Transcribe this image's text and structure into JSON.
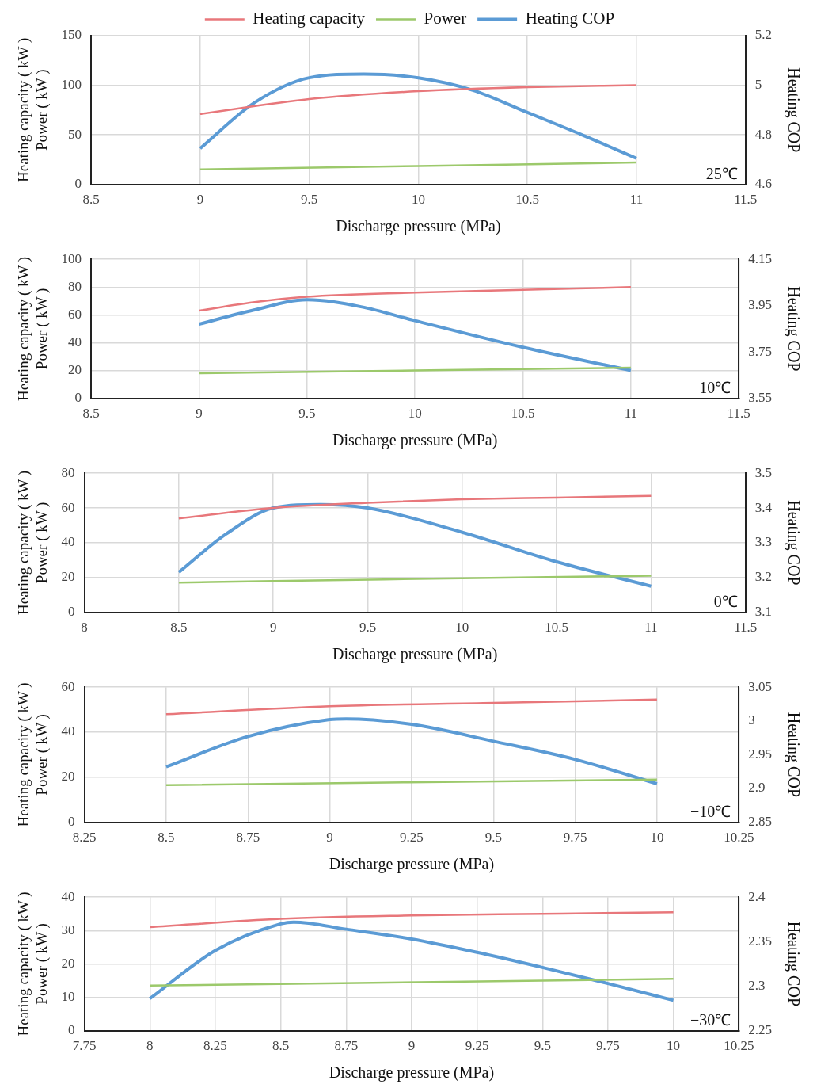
{
  "chart_data": [
    {
      "type": "line",
      "xlabel": "Discharge pressure (MPa)",
      "ylabel": "Heating capacity ( kW )\nPower ( kW )",
      "y2label": "Heating COP",
      "xlim": [
        8.5,
        11.5
      ],
      "xticks": [
        8.5,
        9,
        9.5,
        10,
        10.5,
        11,
        11.5
      ],
      "ylim": [
        0,
        150
      ],
      "yticks": [
        0,
        50,
        100,
        150
      ],
      "y2lim": [
        4.6,
        5.2
      ],
      "y2ticks": [
        4.6,
        4.8,
        5,
        5.2
      ],
      "grid": true,
      "legend": "top",
      "marker": "none",
      "line_style": "solid",
      "annotations": [
        "25℃"
      ],
      "series": [
        {
          "name": "Heating capacity",
          "color": "#e8777b",
          "x": [
            9,
            9.5,
            10,
            10.5,
            11
          ],
          "values": [
            71,
            86,
            94,
            98,
            100
          ]
        },
        {
          "name": "Power",
          "color": "#9cc96b",
          "x": [
            9,
            10,
            11
          ],
          "values": [
            15,
            18.5,
            22
          ]
        },
        {
          "name": "Heating COP",
          "color": "#5b9bd5",
          "axis": "y2",
          "x": [
            9,
            9.25,
            9.5,
            9.75,
            10,
            10.25,
            10.5,
            10.75,
            11
          ],
          "values": [
            4.745,
            4.93,
            5.03,
            5.045,
            5.03,
            4.98,
            4.89,
            4.8,
            4.705
          ]
        }
      ]
    },
    {
      "type": "line",
      "xlabel": "Discharge pressure (MPa)",
      "ylabel": "Heating capacity ( kW )\nPower ( kW )",
      "y2label": "Heating COP",
      "xlim": [
        8.5,
        11.5
      ],
      "xticks": [
        8.5,
        9,
        9.5,
        10,
        10.5,
        11,
        11.5
      ],
      "ylim": [
        0,
        100
      ],
      "yticks": [
        0,
        20,
        40,
        60,
        80,
        100
      ],
      "y2lim": [
        3.55,
        4.15
      ],
      "y2ticks": [
        3.55,
        3.75,
        3.95,
        4.15
      ],
      "grid": true,
      "marker": "none",
      "line_style": "solid",
      "annotations": [
        "10℃"
      ],
      "series": [
        {
          "color": "#e8777b",
          "x": [
            9,
            9.25,
            9.5,
            10,
            10.5,
            11
          ],
          "values": [
            63,
            69,
            73,
            76,
            78,
            80
          ]
        },
        {
          "color": "#9cc96b",
          "x": [
            9,
            10,
            11
          ],
          "values": [
            18,
            20,
            22
          ]
        },
        {
          "color": "#5b9bd5",
          "axis": "y2",
          "x": [
            9,
            9.25,
            9.5,
            9.75,
            10,
            10.5,
            11
          ],
          "values": [
            3.87,
            3.93,
            3.975,
            3.945,
            3.885,
            3.77,
            3.67
          ]
        }
      ]
    },
    {
      "type": "line",
      "xlabel": "Discharge pressure (MPa)",
      "ylabel": "Heating capacity ( kW )\nPower ( kW )",
      "y2label": "Heating COP",
      "xlim": [
        8,
        11.5
      ],
      "xticks": [
        8,
        8.5,
        9,
        9.5,
        10,
        10.5,
        11,
        11.5
      ],
      "ylim": [
        0,
        80
      ],
      "yticks": [
        0,
        20,
        40,
        60,
        80
      ],
      "y2lim": [
        3.1,
        3.5
      ],
      "y2ticks": [
        3.1,
        3.2,
        3.3,
        3.4,
        3.5
      ],
      "grid": true,
      "marker": "none",
      "line_style": "solid",
      "annotations": [
        "0℃"
      ],
      "series": [
        {
          "color": "#e8777b",
          "x": [
            8.5,
            9,
            9.5,
            10,
            10.5,
            11
          ],
          "values": [
            54,
            60,
            63,
            65,
            66,
            67
          ]
        },
        {
          "color": "#9cc96b",
          "x": [
            8.5,
            9,
            10,
            11
          ],
          "values": [
            17,
            18,
            19.5,
            21
          ]
        },
        {
          "color": "#5b9bd5",
          "axis": "y2",
          "x": [
            8.5,
            8.75,
            9,
            9.25,
            9.5,
            10,
            10.5,
            11
          ],
          "values": [
            3.215,
            3.325,
            3.4,
            3.41,
            3.4,
            3.33,
            3.245,
            3.175
          ]
        }
      ]
    },
    {
      "type": "line",
      "xlabel": "Discharge pressure (MPa)",
      "ylabel": "Heating capacity ( kW )\nPower ( kW )",
      "y2label": "Heating COP",
      "xlim": [
        8.25,
        10.25
      ],
      "xticks": [
        8.25,
        8.5,
        8.75,
        9,
        9.25,
        9.5,
        9.75,
        10,
        10.25
      ],
      "ylim": [
        0,
        60
      ],
      "yticks": [
        0,
        20,
        40,
        60
      ],
      "y2lim": [
        2.85,
        3.05
      ],
      "y2ticks": [
        2.85,
        2.9,
        2.95,
        3,
        3.05
      ],
      "grid": true,
      "marker": "none",
      "line_style": "solid",
      "annotations": [
        "−10℃"
      ],
      "series": [
        {
          "color": "#e8777b",
          "x": [
            8.5,
            9,
            9.5,
            10
          ],
          "values": [
            48,
            51.5,
            53,
            54.5
          ]
        },
        {
          "color": "#9cc96b",
          "x": [
            8.5,
            10
          ],
          "values": [
            16.5,
            19
          ]
        },
        {
          "color": "#5b9bd5",
          "axis": "y2",
          "x": [
            8.5,
            8.75,
            9,
            9.05,
            9.25,
            9.5,
            9.75,
            10
          ],
          "values": [
            2.932,
            2.977,
            3.002,
            3.003,
            2.995,
            2.97,
            2.943,
            2.907
          ]
        }
      ]
    },
    {
      "type": "line",
      "xlabel": "Discharge pressure (MPa)",
      "ylabel": "Heating capacity ( kW )\nPower ( kW )",
      "y2label": "Heating COP",
      "xlim": [
        7.75,
        10.25
      ],
      "xticks": [
        7.75,
        8,
        8.25,
        8.5,
        8.75,
        9,
        9.25,
        9.5,
        9.75,
        10,
        10.25
      ],
      "ylim": [
        0,
        40
      ],
      "yticks": [
        0,
        10,
        20,
        30,
        40
      ],
      "y2lim": [
        2.25,
        2.4
      ],
      "y2ticks": [
        2.25,
        2.3,
        2.35,
        2.4
      ],
      "grid": true,
      "marker": "none",
      "line_style": "solid",
      "annotations": [
        "−30℃"
      ],
      "series": [
        {
          "color": "#e8777b",
          "x": [
            8,
            8.5,
            9,
            9.5,
            10
          ],
          "values": [
            31,
            33.5,
            34.5,
            35,
            35.5
          ]
        },
        {
          "color": "#9cc96b",
          "x": [
            8,
            10
          ],
          "values": [
            13.5,
            15.5
          ]
        },
        {
          "color": "#5b9bd5",
          "axis": "y2",
          "x": [
            8,
            8.25,
            8.5,
            8.55,
            8.75,
            9,
            9.25,
            9.5,
            9.75,
            10
          ],
          "values": [
            2.286,
            2.34,
            2.37,
            2.372,
            2.364,
            2.353,
            2.338,
            2.321,
            2.303,
            2.284
          ]
        }
      ]
    }
  ]
}
